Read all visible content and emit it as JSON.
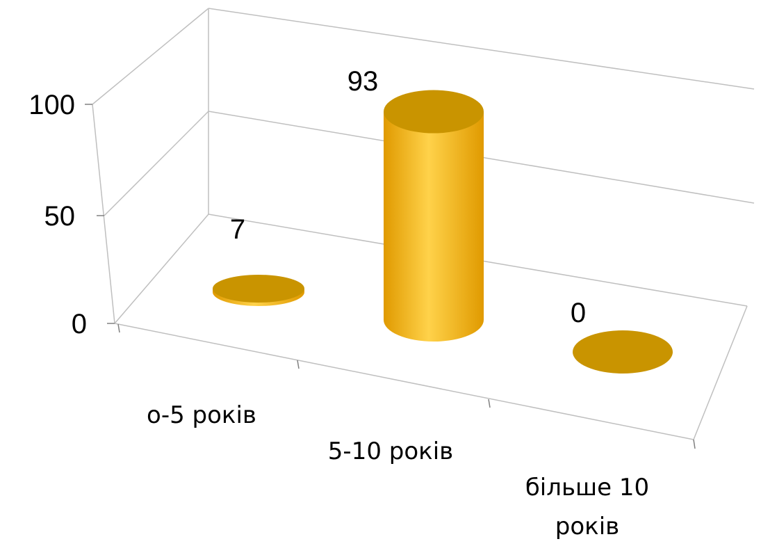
{
  "chart_data": {
    "type": "bar",
    "style": "3d-cylinder",
    "categories": [
      "0-5 років",
      "5-10 років",
      "більше 10 років"
    ],
    "category_lines": [
      [
        "о-5 років"
      ],
      [
        "5-10 років"
      ],
      [
        "більше 10",
        "років"
      ]
    ],
    "values": [
      7,
      93,
      0
    ],
    "data_labels": [
      "7",
      "93",
      "0"
    ],
    "yticks": [
      0,
      50,
      100
    ],
    "ytick_labels": [
      "0",
      "50",
      "100"
    ],
    "ylim": [
      0,
      100
    ],
    "title": "",
    "xlabel": "",
    "ylabel": "",
    "grid": true,
    "legend": "none",
    "colors": {
      "bar_body": "#FFB800",
      "bar_highlight": "#FFD24A",
      "bar_shadow": "#E09A00",
      "bar_top": "#C99400",
      "grid": "#BFBFBF"
    }
  }
}
